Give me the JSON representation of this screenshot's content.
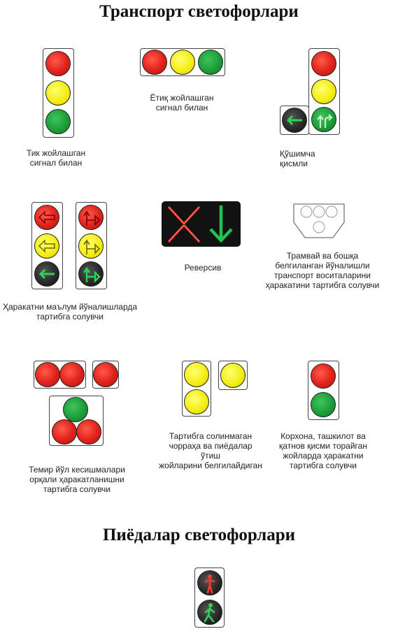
{
  "headings": {
    "transport": "Транспорт светофорлари",
    "pedestrian": "Пиёдалар светофорлари"
  },
  "captions": {
    "vertical": [
      "Тик жойлашган",
      "сигнал билан"
    ],
    "horizontal": [
      "Ётиқ жойлашган",
      "сигнал билан"
    ],
    "additional": [
      "Қўшимча",
      "қисмли"
    ],
    "directional": [
      "Ҳаракатни маълум йўналишларда",
      "тартибга солувчи"
    ],
    "reversible": [
      "Реверсив"
    ],
    "tram": [
      "Трамвай ва бошқа",
      "белгиланган йўналишли",
      "транспорт воситаларини",
      "ҳаракатини тартибга солувчи"
    ],
    "railway": [
      "Темир йўл кесишмалари",
      "орқали ҳаракатланишни",
      "тартибга солувчи"
    ],
    "crossing": [
      "Тартибга солинмаган",
      "чорраҳа ва пиёдалар ўтиш",
      "жойларини белгилайдиган"
    ],
    "enterprise": [
      "Корхона, ташкилот ва",
      "қатнов қисми торайган",
      "жойларда ҳаракатни",
      "тартибга солувчи"
    ]
  },
  "colors": {
    "red": "#e0211b",
    "yellow": "#f2ec10",
    "green": "#1a9a36",
    "dark": "#262626"
  },
  "icons": [
    "arrow-left-icon",
    "arrow-right-turn-icon",
    "cross-x-icon",
    "arrow-down-icon",
    "pedestrian-icon"
  ]
}
